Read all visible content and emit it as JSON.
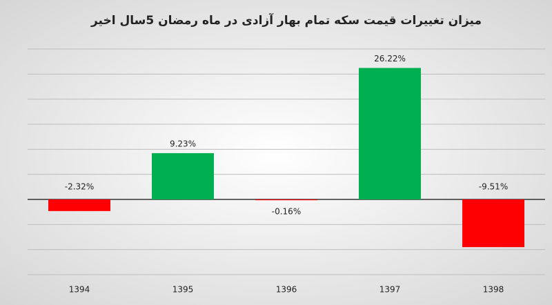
{
  "chart_data": {
    "type": "bar",
    "title": "میزان تغییرات قیمت سکه تمام بهار آزادی در ماه رمضان 5سال اخیر",
    "categories": [
      "1394",
      "1395",
      "1396",
      "1397",
      "1398"
    ],
    "values": [
      -2.32,
      9.23,
      -0.16,
      26.22,
      -9.51
    ],
    "value_labels": [
      "-2.32%",
      "9.23%",
      "-0.16%",
      "26.22%",
      "-9.51%"
    ],
    "colors": [
      "#ff0000",
      "#00b050",
      "#ff0000",
      "#00b050",
      "#ff0000"
    ],
    "ylim": [
      -15,
      30
    ],
    "yticks": [
      -15,
      -10,
      -5,
      0,
      5,
      10,
      15,
      20,
      25,
      30
    ],
    "grid": true
  }
}
